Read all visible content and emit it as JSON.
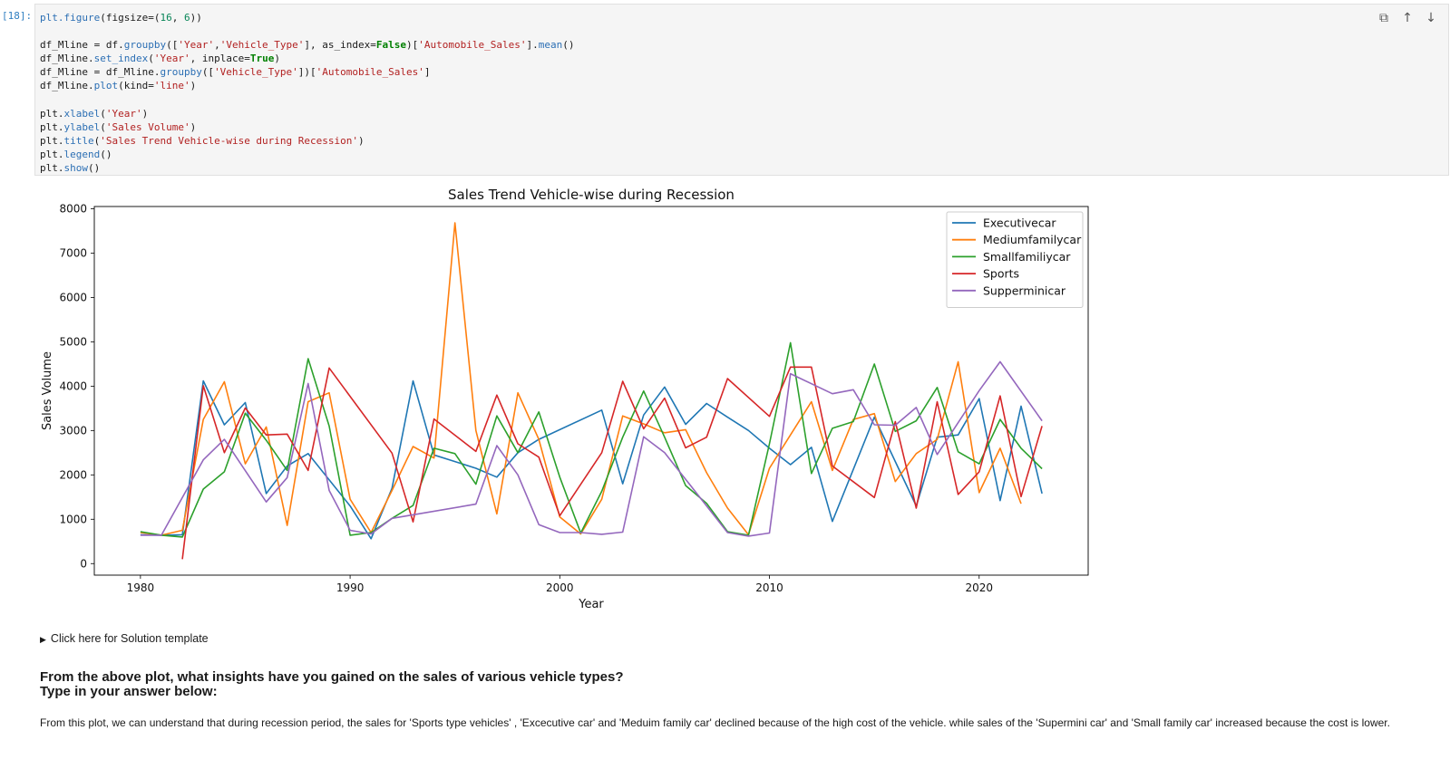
{
  "cell": {
    "prompt": "[18]:",
    "code_lines": [
      "plt.figure(figsize=(16, 6))",
      "",
      "df_Mline = df.groupby(['Year','Vehicle_Type'], as_index=False)['Automobile_Sales'].mean()",
      "df_Mline.set_index('Year', inplace=True)",
      "df_Mline = df_Mline.groupby(['Vehicle_Type'])['Automobile_Sales']",
      "df_Mline.plot(kind='line')",
      "",
      "plt.xlabel('Year')",
      "plt.ylabel('Sales Volume')",
      "plt.title('Sales Trend Vehicle-wise during Recession')",
      "plt.legend()",
      "plt.show()"
    ],
    "toolbar": {
      "copy_icon": "⧉",
      "up_icon": "↑",
      "down_icon": "↓"
    }
  },
  "chart_data": {
    "type": "line",
    "title": "Sales Trend Vehicle-wise during Recession",
    "xlabel": "Year",
    "ylabel": "Sales Volume",
    "xlim": [
      1977.8,
      2025.2
    ],
    "ylim": [
      -260,
      8050
    ],
    "xticks": [
      1980,
      1990,
      2000,
      2010,
      2020
    ],
    "yticks": [
      0,
      1000,
      2000,
      3000,
      4000,
      5000,
      6000,
      7000,
      8000
    ],
    "grid": false,
    "legend_position": "top-right",
    "series": [
      {
        "name": "Executivecar",
        "color": "#1f77b4",
        "x": [
          1980,
          1981,
          1982,
          1983,
          1984,
          1985,
          1986,
          1987,
          1988,
          1990,
          1991,
          1992,
          1993,
          1994,
          1995,
          1996,
          1997,
          1998,
          1999,
          2002,
          2003,
          2004,
          2005,
          2006,
          2007,
          2008,
          2009,
          2010,
          2011,
          2012,
          2013,
          2015,
          2016,
          2017,
          2018,
          2019,
          2020,
          2021,
          2022,
          2023
        ],
        "values": [
          650,
          640,
          650,
          4120,
          3130,
          3630,
          1580,
          2200,
          2480,
          1300,
          560,
          1700,
          4120,
          2450,
          2300,
          2150,
          1950,
          2500,
          2800,
          3460,
          1800,
          3350,
          3980,
          3140,
          3610,
          3300,
          3000,
          2600,
          2230,
          2620,
          950,
          3300,
          2300,
          1300,
          2850,
          2900,
          3720,
          1420,
          3550,
          1580
        ]
      },
      {
        "name": "Mediumfamilycar",
        "color": "#ff7f0e",
        "x": [
          1980,
          1981,
          1982,
          1983,
          1984,
          1985,
          1986,
          1987,
          1988,
          1989,
          1990,
          1991,
          1992,
          1993,
          1994,
          1995,
          1996,
          1997,
          1998,
          1999,
          2000,
          2001,
          2002,
          2003,
          2004,
          2005,
          2006,
          2007,
          2008,
          2009,
          2010,
          2011,
          2012,
          2013,
          2014,
          2015,
          2016,
          2017,
          2018,
          2019,
          2020,
          2021,
          2022
        ],
        "values": [
          700,
          640,
          750,
          3250,
          4100,
          2250,
          3080,
          860,
          3650,
          3850,
          1450,
          700,
          1650,
          2640,
          2380,
          7680,
          3000,
          1120,
          3850,
          2800,
          1050,
          670,
          1450,
          3330,
          3150,
          2950,
          3020,
          2050,
          1250,
          650,
          2150,
          2900,
          3650,
          2100,
          3250,
          3380,
          1850,
          2480,
          2800,
          4550,
          1600,
          2600,
          1350
        ]
      },
      {
        "name": "Smallfamiliycar",
        "color": "#2ca02c",
        "x": [
          1980,
          1981,
          1982,
          1983,
          1984,
          1985,
          1986,
          1987,
          1988,
          1989,
          1990,
          1991,
          1992,
          1993,
          1994,
          1995,
          1996,
          1997,
          1998,
          1999,
          2000,
          2001,
          2002,
          2003,
          2004,
          2005,
          2006,
          2007,
          2008,
          2009,
          2010,
          2011,
          2012,
          2013,
          2014,
          2015,
          2016,
          2017,
          2018,
          2019,
          2020,
          2021,
          2022,
          2023
        ],
        "values": [
          720,
          640,
          600,
          1680,
          2070,
          3390,
          2780,
          2100,
          4620,
          3100,
          640,
          700,
          1020,
          1310,
          2600,
          2480,
          1790,
          3330,
          2500,
          3420,
          1950,
          690,
          1630,
          2850,
          3890,
          2850,
          1760,
          1360,
          720,
          640,
          2700,
          4980,
          2030,
          3050,
          3200,
          4500,
          2980,
          3220,
          3970,
          2520,
          2250,
          3250,
          2600,
          2140
        ]
      },
      {
        "name": "Sports",
        "color": "#d62728",
        "x": [
          1982,
          1983,
          1984,
          1985,
          1986,
          1987,
          1988,
          1989,
          1992,
          1993,
          1994,
          1996,
          1997,
          1998,
          1999,
          2000,
          2002,
          2003,
          2004,
          2005,
          2006,
          2007,
          2008,
          2010,
          2011,
          2012,
          2013,
          2015,
          2016,
          2017,
          2018,
          2019,
          2020,
          2021,
          2022,
          2023
        ],
        "values": [
          100,
          4010,
          2500,
          3510,
          2900,
          2920,
          2100,
          4410,
          2490,
          940,
          3260,
          2530,
          3800,
          2700,
          2400,
          1080,
          2500,
          4110,
          3040,
          3730,
          2610,
          2850,
          4170,
          3320,
          4430,
          4430,
          2200,
          1490,
          3200,
          1250,
          3650,
          1560,
          2070,
          3780,
          1510,
          3100
        ]
      },
      {
        "name": "Supperminicar",
        "color": "#9467bd",
        "x": [
          1980,
          1981,
          1983,
          1984,
          1986,
          1987,
          1988,
          1989,
          1990,
          1991,
          1992,
          1996,
          1997,
          1998,
          1999,
          2000,
          2001,
          2002,
          2003,
          2004,
          2005,
          2006,
          2008,
          2009,
          2010,
          2011,
          2013,
          2014,
          2015,
          2016,
          2017,
          2018,
          2020,
          2021,
          2023
        ],
        "values": [
          640,
          640,
          2340,
          2800,
          1390,
          1940,
          4060,
          1650,
          750,
          670,
          1020,
          1340,
          2660,
          2000,
          880,
          700,
          700,
          660,
          710,
          2860,
          2500,
          1900,
          700,
          620,
          690,
          4280,
          3830,
          3920,
          3130,
          3120,
          3520,
          2460,
          3900,
          4550,
          3220
        ]
      }
    ]
  },
  "solution_toggle": {
    "arrow": "▶",
    "label": "Click here for Solution template"
  },
  "question": {
    "line1": "From the above plot, what insights have you gained on the sales of various vehicle types?",
    "line2": "Type in your answer below:"
  },
  "answer": "From this plot, we can understand that during recession period, the sales for 'Sports type vehicles' , 'Excecutive car' and 'Meduim family car' declined because of the high cost of the vehicle. while sales of the 'Supermini car' and 'Small family car' increased because the cost is lower."
}
